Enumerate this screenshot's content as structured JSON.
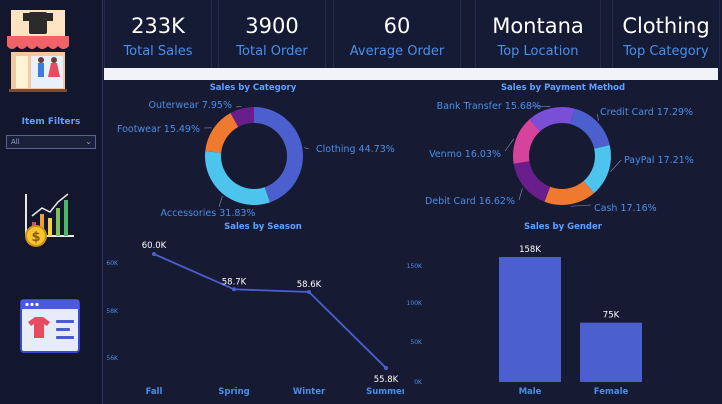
{
  "filters": {
    "title": "Item Filters",
    "selected": "All"
  },
  "kpis": [
    {
      "value": "233K",
      "label": "Total Sales"
    },
    {
      "value": "3900",
      "label": "Total Order"
    },
    {
      "value": "60",
      "label": "Average Order"
    },
    {
      "value": "Montana",
      "label": "Top Location"
    },
    {
      "value": "Clothing",
      "label": "Top Category"
    }
  ],
  "chart_data": [
    {
      "type": "pie",
      "title": "Sales by Category",
      "slices": [
        {
          "label": "Clothing 44.73%",
          "value": 44.73,
          "color": "#4b5fcf"
        },
        {
          "label": "Accessories 31.83%",
          "value": 31.83,
          "color": "#4cc4ee"
        },
        {
          "label": "Footwear 15.49%",
          "value": 15.49,
          "color": "#ef7a2f"
        },
        {
          "label": "Outerwear 7.95%",
          "value": 7.95,
          "color": "#6a1e8c"
        }
      ]
    },
    {
      "type": "pie",
      "title": "Sales by Payment Method",
      "slices": [
        {
          "label": "Credit Card 17.29%",
          "value": 17.29,
          "color": "#4b5fcf"
        },
        {
          "label": "PayPal 17.21%",
          "value": 17.21,
          "color": "#4cc4ee"
        },
        {
          "label": "Cash 17.16%",
          "value": 17.16,
          "color": "#ef7a2f"
        },
        {
          "label": "Debit Card 16.62%",
          "value": 16.62,
          "color": "#6a1e8c"
        },
        {
          "label": "Venmo 16.03%",
          "value": 16.03,
          "color": "#d6439c"
        },
        {
          "label": "Bank Transfer 15.68%",
          "value": 15.68,
          "color": "#7a4fd8"
        }
      ]
    },
    {
      "type": "line",
      "title": "Sales by Season",
      "categories": [
        "Fall",
        "Spring",
        "Winter",
        "Summer"
      ],
      "values": [
        60.0,
        58.7,
        58.6,
        55.8
      ],
      "data_labels": [
        "60.0K",
        "58.7K",
        "58.6K",
        "55.8K"
      ],
      "y_ticks": [
        "60K",
        "58K",
        "56K"
      ],
      "ylim": [
        55.8,
        60.0
      ],
      "grid": false,
      "color": "#4b5fcf"
    },
    {
      "type": "bar",
      "title": "Sales by Gender",
      "categories": [
        "Male",
        "Female"
      ],
      "values": [
        158,
        75
      ],
      "data_labels": [
        "158K",
        "75K"
      ],
      "y_ticks": [
        "150K",
        "100K",
        "50K",
        "0K"
      ],
      "ylim": [
        0,
        158
      ],
      "grid": false,
      "color": "#4b5fcf"
    }
  ]
}
